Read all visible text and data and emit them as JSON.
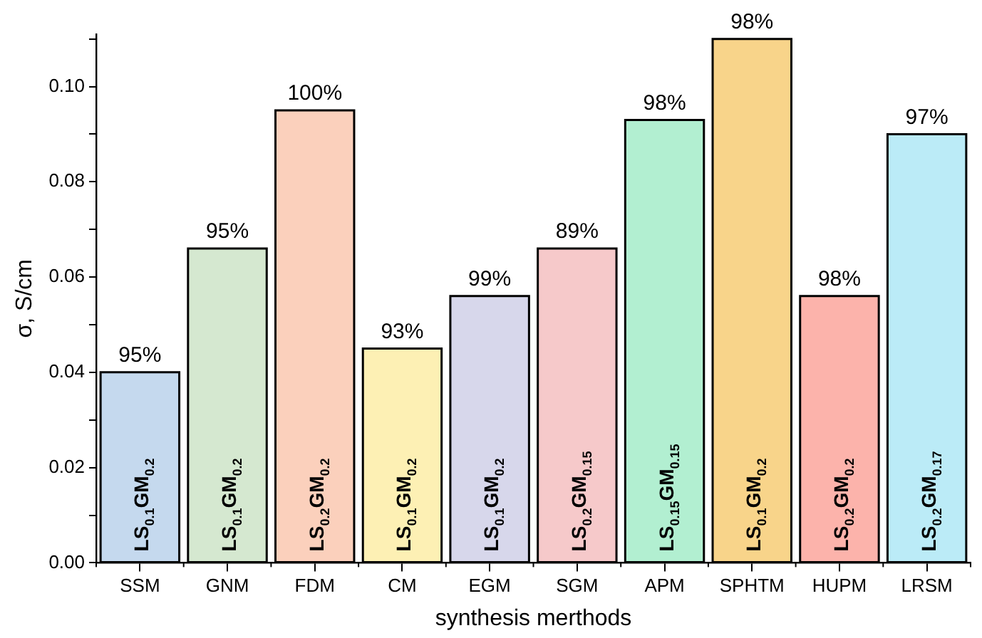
{
  "chart_data": {
    "type": "bar",
    "xlabel": "synthesis merthods",
    "ylabel": "σ, S/cm",
    "categories": [
      "SSM",
      "GNM",
      "FDM",
      "CM",
      "EGM",
      "SGM",
      "APM",
      "SPHTM",
      "HUPM",
      "LRSM"
    ],
    "values": [
      0.04,
      0.066,
      0.095,
      0.045,
      0.056,
      0.066,
      0.093,
      0.11,
      0.056,
      0.09
    ],
    "colors": [
      "#c5d9ee",
      "#d5e8d0",
      "#fbd0bc",
      "#fdf0b4",
      "#d7d7eb",
      "#f6c9ca",
      "#b2efd1",
      "#f8d48a",
      "#fcb3ab",
      "#bbebf7"
    ],
    "annotations": [
      {
        "text": "95%",
        "x": "SSM",
        "y": 0.04
      },
      {
        "text": "95%",
        "x": "GNM",
        "y": 0.066
      },
      {
        "text": "100%",
        "x": "FDM",
        "y": 0.095
      },
      {
        "text": "93%",
        "x": "CM",
        "y": 0.045
      },
      {
        "text": "99%",
        "x": "EGM",
        "y": 0.056
      },
      {
        "text": "89%",
        "x": "SGM",
        "y": 0.066
      },
      {
        "text": "98%",
        "x": "APM",
        "y": 0.093
      },
      {
        "text": "98%",
        "x": "SPHTM",
        "y": 0.11
      },
      {
        "text": "98%",
        "x": "HUPM",
        "y": 0.056
      },
      {
        "text": "97%",
        "x": "LRSM",
        "y": 0.09
      },
      "LS$_{0.1}$GM$_{0.2}$",
      "LS$_{0.1}$GM$_{0.2}$",
      "LS$_{0.2}$GM$_{0.2}$",
      "LS$_{0.1}$GM$_{0.2}$",
      "LS$_{0.1}$GM$_{0.2}$",
      "LS$_{0.2}$GM$_{0.15}$",
      "LS$_{0.15}$GM$_{0.15}$",
      "LS$_{0.1}$GM$_{0.2}$",
      "LS$_{0.2}$GM$_{0.2}$",
      "LS$_{0.2}$GM$_{0.17}$"
    ],
    "ylim": [
      0,
      0.111
    ],
    "yticks": [
      {
        "value": 0,
        "label": "0.00"
      },
      {
        "value": 0.01,
        "label": null
      },
      {
        "value": 0.02,
        "label": "0.02"
      },
      {
        "value": 0.03,
        "label": null
      },
      {
        "value": 0.04,
        "label": "0.04"
      },
      {
        "value": 0.05,
        "label": null
      },
      {
        "value": 0.06,
        "label": "0.06"
      },
      {
        "value": 0.07,
        "label": null
      },
      {
        "value": 0.08,
        "label": "0.08"
      },
      {
        "value": 0.09,
        "label": null
      },
      {
        "value": 0.1,
        "label": "0.10"
      },
      {
        "value": 0.11,
        "label": null
      }
    ],
    "grid": false,
    "legend": false
  }
}
